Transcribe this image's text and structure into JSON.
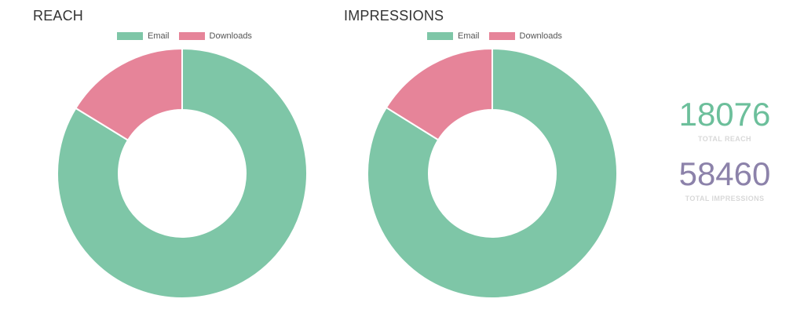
{
  "colors": {
    "email": "#7ec6a7",
    "downloads": "#e68499",
    "reach_total": "#6cbf9b",
    "impressions_total": "#8c82aa",
    "total_label": "#d8d8d8"
  },
  "legend": {
    "email": "Email",
    "downloads": "Downloads"
  },
  "chart_data": [
    {
      "type": "pie",
      "title": "REACH",
      "categories": [
        "Email",
        "Downloads"
      ],
      "values": [
        15140,
        2936
      ],
      "donut": true,
      "legend_position": "top-center"
    },
    {
      "type": "pie",
      "title": "IMPRESSIONS",
      "categories": [
        "Email",
        "Downloads"
      ],
      "values": [
        49020,
        9440
      ],
      "donut": true,
      "legend_position": "top-center"
    }
  ],
  "totals": {
    "reach_value": "18076",
    "reach_label": "TOTAL REACH",
    "impressions_value": "58460",
    "impressions_label": "TOTAL IMPRESSIONS"
  }
}
